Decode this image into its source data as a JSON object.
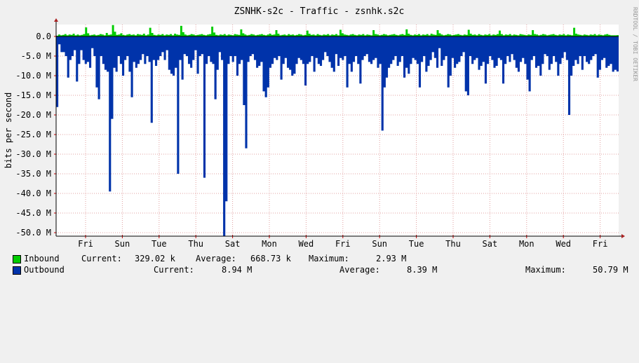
{
  "title": "ZSNHK-s2c - Traffic - zsnhk.s2c",
  "watermark": "RRDTOOL / TOBI OETIKER",
  "colors": {
    "inbound": "#00cc00",
    "outbound": "#0033aa",
    "grid": "#e0a0a0",
    "axis": "#000000",
    "arrow": "#aa2222"
  },
  "legend": {
    "inbound": {
      "name": "Inbound",
      "current_label": "Current:",
      "current": "329.02 k",
      "average_label": "Average:",
      "average": "668.73 k",
      "maximum_label": "Maximum:",
      "maximum": "2.93 M"
    },
    "outbound": {
      "name": "Outbound",
      "current_label": "Current:",
      "current": "8.94 M",
      "average_label": "Average:",
      "average": "8.39 M",
      "maximum_label": "Maximum:",
      "maximum": "50.79 M"
    }
  },
  "chart_data": {
    "type": "area",
    "ylabel": "bits per second",
    "ylim": [
      -50.79,
      2.93
    ],
    "yticks": [
      "0.0",
      "-5.0 M",
      "-10.0 M",
      "-15.0 M",
      "-20.0 M",
      "-25.0 M",
      "-30.0 M",
      "-35.0 M",
      "-40.0 M",
      "-45.0 M",
      "-50.0 M"
    ],
    "xticks": [
      "Fri",
      "Sun",
      "Tue",
      "Thu",
      "Sat",
      "Mon",
      "Wed",
      "Fri",
      "Sun",
      "Tue",
      "Thu",
      "Sat",
      "Mon",
      "Wed",
      "Fri"
    ],
    "unit": "M bits per second",
    "series": [
      {
        "name": "Inbound",
        "values": [
          0.2,
          0.5,
          0.3,
          0.4,
          0.6,
          0.3,
          0.5,
          0.4,
          0.7,
          0.3,
          0.5,
          0.3,
          0.4,
          0.6,
          2.3,
          0.8,
          0.3,
          0.4,
          0.5,
          0.3,
          0.4,
          0.6,
          0.5,
          0.3,
          0.9,
          0.4,
          0.5,
          2.9,
          1.2,
          0.4,
          0.5,
          0.8,
          0.4,
          0.3,
          0.5,
          0.6,
          0.4,
          0.5,
          0.3,
          0.6,
          0.5,
          0.4,
          0.7,
          0.3,
          0.5,
          2.2,
          0.9,
          0.4,
          0.3,
          0.5,
          0.4,
          0.6,
          0.3,
          0.5,
          0.4,
          0.6,
          0.3,
          0.7,
          0.5,
          0.4,
          2.7,
          1.1,
          0.5,
          0.3,
          0.4,
          0.6,
          0.5,
          0.3,
          0.4,
          0.5,
          0.6,
          0.4,
          0.3,
          0.5,
          0.6,
          2.5,
          1.0,
          0.4,
          0.3,
          0.5,
          0.4,
          0.6,
          0.3,
          0.5,
          0.4,
          0.3,
          0.6,
          0.5,
          0.4,
          1.8,
          0.8,
          0.5,
          0.3,
          0.4,
          0.6,
          0.5,
          0.3,
          0.4,
          0.5,
          0.6,
          0.4,
          0.3,
          0.5,
          0.7,
          0.4,
          0.5,
          1.6,
          0.7,
          0.3,
          0.4,
          0.5,
          0.3,
          0.6,
          0.4,
          0.5,
          0.3,
          0.4,
          0.6,
          0.5,
          0.3,
          0.4,
          1.5,
          0.7,
          0.4,
          0.5,
          0.3,
          0.6,
          0.4,
          0.3,
          0.5,
          0.4,
          0.6,
          0.3,
          0.5,
          0.4,
          0.6,
          0.3,
          1.7,
          0.8,
          0.5,
          0.4,
          0.3,
          0.5,
          0.6,
          0.4,
          0.3,
          0.5,
          0.4,
          0.6,
          0.3,
          0.5,
          0.4,
          0.3,
          1.6,
          0.6,
          0.5,
          0.3,
          0.4,
          0.6,
          0.5,
          0.3,
          0.4,
          0.5,
          0.6,
          0.4,
          0.3,
          0.5,
          0.6,
          0.4,
          1.8,
          0.7,
          0.4,
          0.3,
          0.5,
          0.4,
          0.6,
          0.3,
          0.5,
          0.4,
          0.6,
          0.3,
          0.7,
          0.5,
          0.4,
          1.6,
          0.8,
          0.5,
          0.3,
          0.4,
          0.6,
          0.5,
          0.3,
          0.4,
          0.5,
          0.6,
          0.4,
          0.3,
          0.5,
          0.4,
          1.7,
          0.7,
          0.4,
          0.5,
          0.3,
          0.6,
          0.4,
          0.3,
          0.5,
          0.4,
          0.6,
          0.3,
          0.5,
          0.4,
          0.6,
          1.5,
          0.6,
          0.3,
          0.5,
          0.4,
          0.6,
          0.3,
          0.5,
          0.4,
          0.3,
          0.6,
          0.5,
          0.4,
          0.3,
          0.5,
          0.4,
          1.6,
          0.6,
          0.5,
          0.3,
          0.4,
          0.6,
          0.5,
          0.3,
          0.4,
          0.5,
          0.6,
          0.4,
          0.3,
          0.5,
          0.4,
          0.6,
          0.3,
          0.5,
          0.4,
          0.3,
          2.2,
          0.7,
          0.5,
          0.4,
          0.3,
          0.5,
          0.4,
          0.3,
          0.5,
          0.4,
          0.6,
          0.3,
          0.5,
          0.4,
          0.3,
          0.5,
          0.6,
          0.4,
          0.3,
          0.3,
          0.3,
          0.33
        ]
      },
      {
        "name": "Outbound",
        "values": [
          -18,
          -2,
          -4,
          -4,
          -5,
          -10.5,
          -6,
          -5,
          -3.5,
          -11.5,
          -7,
          -3.5,
          -6,
          -7,
          -6.5,
          -8,
          -3,
          -5,
          -13,
          -16,
          -5,
          -7,
          -8.5,
          -9,
          -39.5,
          -21,
          -8,
          -9,
          -5,
          -7,
          -10,
          -6,
          -5,
          -9,
          -15.5,
          -6.5,
          -8,
          -7,
          -6,
          -4.5,
          -7,
          -5,
          -6.5,
          -22,
          -6,
          -7.5,
          -6,
          -5,
          -4,
          -6,
          -3.5,
          -8.5,
          -9.5,
          -10,
          -8,
          -35,
          -6,
          -11,
          -4.5,
          -5,
          -7,
          -8,
          -6,
          -3.5,
          -9.5,
          -5,
          -4.5,
          -36,
          -7,
          -5,
          -6.5,
          -7,
          -16,
          -8.5,
          -4,
          -6,
          -51,
          -42,
          -7,
          -5,
          -6.5,
          -5,
          -10,
          -7,
          -6,
          -17.5,
          -28.5,
          -6.5,
          -5,
          -4.5,
          -6,
          -8,
          -7.5,
          -6.5,
          -14,
          -15.5,
          -13,
          -8,
          -7,
          -5.5,
          -6,
          -5,
          -11,
          -7,
          -5.5,
          -8,
          -8.5,
          -10,
          -9.5,
          -7,
          -5.5,
          -6,
          -7,
          -12.5,
          -7,
          -6.5,
          -5,
          -9,
          -5.5,
          -7,
          -7.5,
          -6,
          -4,
          -5,
          -6.5,
          -8,
          -9,
          -4.5,
          -7.5,
          -5.5,
          -6,
          -5,
          -13,
          -7,
          -9,
          -6.5,
          -5,
          -7,
          -12,
          -6,
          -5,
          -4.5,
          -6.5,
          -7,
          -6,
          -5.5,
          -8,
          -7,
          -24,
          -13,
          -10.5,
          -8,
          -7,
          -6,
          -5,
          -7.5,
          -6.5,
          -5,
          -10.5,
          -8,
          -9.5,
          -7,
          -5.5,
          -6,
          -7,
          -13,
          -6.5,
          -5,
          -9,
          -7.5,
          -6,
          -4,
          -5.5,
          -8,
          -3,
          -7.5,
          -6,
          -5,
          -13,
          -10,
          -5.5,
          -8,
          -7,
          -6.5,
          -5,
          -4,
          -14,
          -15,
          -5,
          -7,
          -6,
          -5.5,
          -8.5,
          -7.5,
          -6.5,
          -12,
          -7,
          -5,
          -6,
          -8,
          -7.5,
          -5.5,
          -6,
          -12,
          -7,
          -5,
          -6.5,
          -4.5,
          -6,
          -8,
          -9,
          -6.5,
          -5.5,
          -7,
          -11,
          -14,
          -6,
          -5,
          -8,
          -7.5,
          -10,
          -7,
          -4.5,
          -5,
          -8.5,
          -7,
          -5,
          -6.5,
          -10,
          -7,
          -5.5,
          -4,
          -6,
          -20,
          -10,
          -7.5,
          -6,
          -7,
          -5,
          -8.5,
          -5,
          -6.5,
          -7,
          -6,
          -5,
          -4.5,
          -10.5,
          -8.5,
          -6,
          -5.5,
          -8,
          -7.5,
          -7,
          -9,
          -8.5,
          -8.94
        ]
      }
    ]
  }
}
